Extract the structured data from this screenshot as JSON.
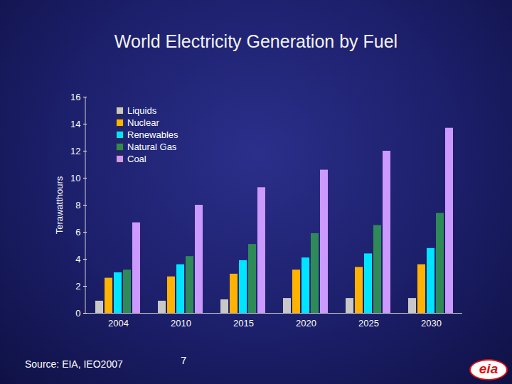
{
  "chart_data": {
    "type": "bar",
    "title": "World Electricity Generation by Fuel",
    "ylabel": "Terawatthours",
    "categories": [
      "2004",
      "2010",
      "2015",
      "2020",
      "2025",
      "2030"
    ],
    "series": [
      {
        "name": "Liquids",
        "color": "#c8c8c8",
        "values": [
          0.9,
          0.9,
          1.0,
          1.1,
          1.1,
          1.1
        ]
      },
      {
        "name": "Nuclear",
        "color": "#ffb300",
        "values": [
          2.6,
          2.7,
          2.9,
          3.2,
          3.4,
          3.6
        ]
      },
      {
        "name": "Renewables",
        "color": "#00e5ff",
        "values": [
          3.0,
          3.6,
          3.9,
          4.1,
          4.4,
          4.8
        ]
      },
      {
        "name": "Natural Gas",
        "color": "#2e8b57",
        "values": [
          3.2,
          4.2,
          5.1,
          5.9,
          6.5,
          7.4
        ]
      },
      {
        "name": "Coal",
        "color": "#cc99ff",
        "values": [
          6.7,
          8.0,
          9.3,
          10.6,
          12.0,
          13.7
        ]
      }
    ],
    "ylim": [
      0,
      16
    ],
    "yticks": [
      0,
      2,
      4,
      6,
      8,
      10,
      12,
      14,
      16
    ],
    "grid": false,
    "legend": "top-left",
    "source": "Source: EIA, IEO2007",
    "page_number": "7",
    "logo": "eia"
  }
}
